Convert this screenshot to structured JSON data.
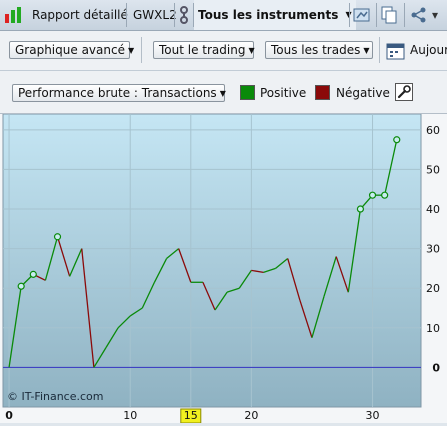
{
  "tabs": {
    "report": "Rapport détaillé",
    "symbol": "GWXL2",
    "instruments": "Tous les instruments"
  },
  "toolbar": {
    "chart_mode": "Graphique avancé",
    "trading_filter": "Tout le trading",
    "trades_filter": "Tous les trades",
    "date_label": "Aujour"
  },
  "legend": {
    "metric": "Performance brute : Transactions",
    "positive_label": "Positive",
    "positive_color": "#0a8a0a",
    "negative_label": "Négative",
    "negative_color": "#8b0a0a"
  },
  "chart_data": {
    "type": "line",
    "watermark": "© IT-Finance.com",
    "xlim": [
      -0.5,
      34
    ],
    "ylim": [
      -10,
      64
    ],
    "x_ticks": [
      0,
      10,
      15,
      20,
      30
    ],
    "x_tick_labels": [
      "0",
      "10",
      "15",
      "20",
      "30"
    ],
    "highlighted_x": "15",
    "y_ticks": [
      0,
      10,
      20,
      30,
      40,
      50,
      60
    ],
    "y_tick_labels": [
      "0",
      "10",
      "20",
      "30",
      "40",
      "50",
      "60"
    ],
    "grid": true,
    "x": [
      0,
      1,
      2,
      3,
      4,
      5,
      6,
      7,
      8,
      9,
      10,
      11,
      12,
      13,
      14,
      15,
      16,
      17,
      18,
      19,
      20,
      21,
      22,
      23,
      24,
      25,
      26,
      27,
      28,
      29,
      30,
      31,
      32
    ],
    "values": [
      0,
      20.5,
      23.5,
      22,
      33,
      23,
      30,
      0,
      5,
      10,
      13,
      15,
      21.5,
      27.5,
      30,
      21.5,
      21.5,
      14.5,
      19,
      20,
      24.5,
      24,
      25,
      27.5,
      17,
      7.5,
      18,
      28,
      19,
      40,
      43.5,
      43.5,
      57.5
    ],
    "markers": [
      1,
      2,
      4,
      29,
      30,
      31,
      32
    ]
  }
}
